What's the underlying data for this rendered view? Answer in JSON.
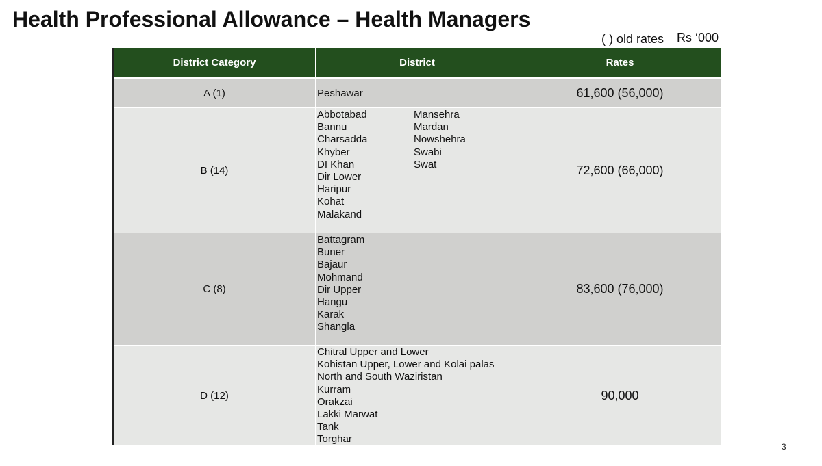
{
  "header": {
    "title": "Health Professional Allowance – Health Managers",
    "note": "( ) old rates",
    "unit": "Rs ‘000"
  },
  "table": {
    "columns": [
      "District Category",
      "District",
      "Rates"
    ],
    "rows": [
      {
        "category": "A (1)",
        "districts": [
          [
            "Peshawar"
          ]
        ],
        "rate": "61,600 (56,000)"
      },
      {
        "category": "B (14)",
        "districts": [
          [
            "Abbotabad",
            "Bannu",
            "Charsadda",
            "Khyber",
            "DI Khan",
            "Dir Lower",
            "Haripur",
            "Kohat",
            "Malakand"
          ],
          [
            "Mansehra",
            "Mardan",
            "Nowshehra",
            "Swabi",
            "Swat"
          ]
        ],
        "rate": "72,600 (66,000)"
      },
      {
        "category": "C (8)",
        "districts": [
          [
            "Battagram",
            "Buner",
            "Bajaur",
            "Mohmand",
            "Dir Upper",
            "Hangu",
            "Karak",
            "Shangla"
          ]
        ],
        "rate": "83,600 (76,000)"
      },
      {
        "category": "D (12)",
        "districts": [
          [
            "Chitral Upper and Lower",
            "Kohistan Upper, Lower and Kolai palas",
            "North and South Waziristan",
            "Kurram",
            "Orakzai",
            "Lakki Marwat",
            "Tank",
            "Torghar"
          ]
        ],
        "rate": "90,000"
      }
    ]
  },
  "footer": {
    "page_number": "3"
  }
}
